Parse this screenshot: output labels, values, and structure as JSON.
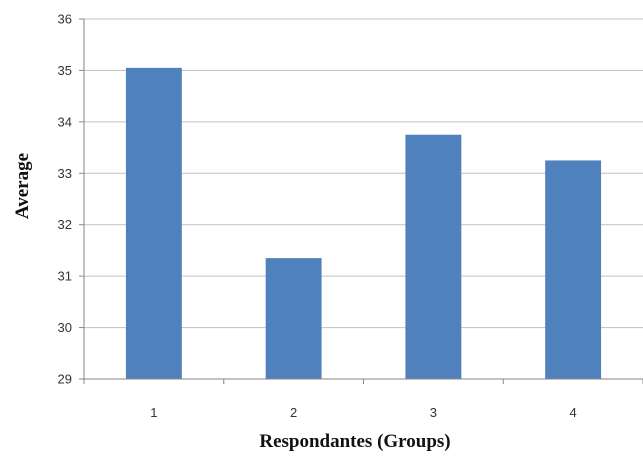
{
  "chart_data": {
    "type": "bar",
    "categories": [
      "1",
      "2",
      "3",
      "4"
    ],
    "values": [
      35.05,
      31.35,
      33.75,
      33.25
    ],
    "title": "",
    "xlabel": "Respondantes (Groups)",
    "ylabel": "Average",
    "ylim": [
      29,
      36
    ],
    "yticks": [
      29,
      30,
      31,
      32,
      33,
      34,
      35,
      36
    ],
    "grid": true,
    "legend": "none",
    "colors": {
      "bar": "#4f81bd",
      "grid": "#c0c0c0",
      "axis": "#868686"
    }
  }
}
